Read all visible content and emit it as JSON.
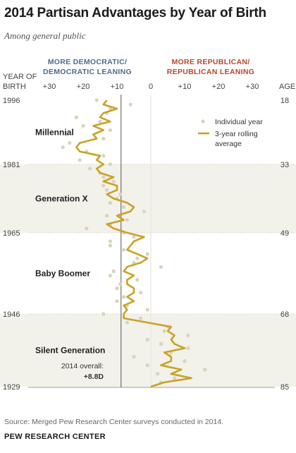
{
  "header": {
    "title": "2014 Partisan Advantages by Year of Birth",
    "subtitle": "Among general public"
  },
  "footer": {
    "source": "Source: Merged Pew Research Center surveys conducted in 2014.",
    "org": "PEW RESEARCH CENTER"
  },
  "colors": {
    "line": "#c9a227",
    "dots": "#d9d3bd",
    "band": "#f2f1ea",
    "dem": "#4e6b8a",
    "rep": "#b5472b"
  },
  "chart_data": {
    "type": "line",
    "x_header_left": [
      "MORE DEMOCRATIC/",
      "DEMOCRATIC LEANING"
    ],
    "x_header_right": [
      "MORE REPUBLICAN/",
      "REPUBLICAN LEANING"
    ],
    "y_axis_left_label": [
      "YEAR OF",
      "BIRTH"
    ],
    "y_axis_right_label": "AGE",
    "xlim": [
      -35,
      35
    ],
    "ylim": [
      1996,
      1929
    ],
    "x_ticks": [
      {
        "value": -30,
        "label": "+30"
      },
      {
        "value": -20,
        "label": "+20"
      },
      {
        "value": -10,
        "label": "+10"
      },
      {
        "value": 0,
        "label": "0"
      },
      {
        "value": 10,
        "label": "+10"
      },
      {
        "value": 20,
        "label": "+20"
      },
      {
        "value": 30,
        "label": "+30"
      }
    ],
    "y_ticks_left": [
      "1996",
      "1981",
      "1965",
      "1946",
      "1929"
    ],
    "y_ticks_right": [
      "18",
      "33",
      "49",
      "68",
      "85"
    ],
    "y_tick_years": [
      1996,
      1981,
      1965,
      1946,
      1929
    ],
    "generations": [
      {
        "name": "Millennial",
        "from": 1996,
        "to": 1981,
        "shaded": false
      },
      {
        "name": "Generation X",
        "from": 1981,
        "to": 1965,
        "shaded": true
      },
      {
        "name": "Baby Boomer",
        "from": 1965,
        "to": 1946,
        "shaded": false
      },
      {
        "name": "Silent Generation",
        "from": 1946,
        "to": 1929,
        "shaded": true
      }
    ],
    "overall": {
      "value": -8.8,
      "label_line1": "2014 overall:",
      "label_line2": "+8.8D"
    },
    "legend": {
      "individual": "Individual year",
      "rolling": [
        "3-year rolling",
        "average"
      ],
      "placement": "top-right"
    },
    "series": [
      {
        "name": "3-year rolling average",
        "points": [
          [
            -13,
            1996
          ],
          [
            -14,
            1995
          ],
          [
            -10,
            1994
          ],
          [
            -14,
            1993
          ],
          [
            -15,
            1992
          ],
          [
            -12,
            1991
          ],
          [
            -17,
            1990
          ],
          [
            -14,
            1989
          ],
          [
            -17,
            1988
          ],
          [
            -16,
            1987
          ],
          [
            -21,
            1986
          ],
          [
            -22,
            1985
          ],
          [
            -21,
            1984
          ],
          [
            -15,
            1983
          ],
          [
            -16,
            1982
          ],
          [
            -14,
            1981
          ],
          [
            -16,
            1980
          ],
          [
            -15,
            1979
          ],
          [
            -11,
            1978
          ],
          [
            -14,
            1977
          ],
          [
            -10,
            1976
          ],
          [
            -10,
            1975
          ],
          [
            -13,
            1974
          ],
          [
            -11,
            1973
          ],
          [
            -7,
            1972
          ],
          [
            -5,
            1971
          ],
          [
            -6,
            1970
          ],
          [
            -10,
            1969
          ],
          [
            -8,
            1968
          ],
          [
            -13,
            1967
          ],
          [
            -11,
            1966
          ],
          [
            -7,
            1965
          ],
          [
            -2,
            1964
          ],
          [
            -5,
            1963
          ],
          [
            -6,
            1962
          ],
          [
            -7,
            1961
          ],
          [
            -4,
            1960
          ],
          [
            -1,
            1959
          ],
          [
            -3,
            1958
          ],
          [
            -7,
            1957
          ],
          [
            -8,
            1956
          ],
          [
            -5,
            1955
          ],
          [
            -7,
            1954
          ],
          [
            -7,
            1953
          ],
          [
            -5,
            1952
          ],
          [
            -5,
            1951
          ],
          [
            -7,
            1950
          ],
          [
            -5,
            1949
          ],
          [
            -8,
            1948
          ],
          [
            -7,
            1947
          ],
          [
            -8,
            1946
          ],
          [
            -8,
            1945
          ],
          [
            -1,
            1944
          ],
          [
            6,
            1943
          ],
          [
            5,
            1942
          ],
          [
            7,
            1941
          ],
          [
            6,
            1940
          ],
          [
            7,
            1939
          ],
          [
            10,
            1938
          ],
          [
            4,
            1937
          ],
          [
            6,
            1936
          ],
          [
            6,
            1935
          ],
          [
            3,
            1934
          ],
          [
            9,
            1933
          ],
          [
            6,
            1932
          ],
          [
            12,
            1931
          ],
          [
            4,
            1930
          ],
          [
            0,
            1929
          ]
        ]
      },
      {
        "name": "Individual year",
        "points": [
          [
            -16,
            1996
          ],
          [
            -6,
            1995
          ],
          [
            -12,
            1994
          ],
          [
            -13,
            1993
          ],
          [
            -22,
            1992
          ],
          [
            -15,
            1991
          ],
          [
            -20,
            1990
          ],
          [
            -12,
            1989
          ],
          [
            -25,
            1988
          ],
          [
            -14,
            1987
          ],
          [
            -24,
            1986
          ],
          [
            -26,
            1985
          ],
          [
            -19,
            1984
          ],
          [
            -14,
            1983
          ],
          [
            -21,
            1982
          ],
          [
            -12,
            1981
          ],
          [
            -18,
            1980
          ],
          [
            -15,
            1979
          ],
          [
            -14,
            1978
          ],
          [
            -11,
            1977
          ],
          [
            -14,
            1976
          ],
          [
            -13,
            1975
          ],
          [
            -9,
            1974
          ],
          [
            -10,
            1973
          ],
          [
            -12,
            1972
          ],
          [
            -8,
            1971
          ],
          [
            -2,
            1970
          ],
          [
            -13,
            1969
          ],
          [
            -7,
            1968
          ],
          [
            -12,
            1967
          ],
          [
            -19,
            1966
          ],
          [
            -8,
            1965
          ],
          [
            -5,
            1964
          ],
          [
            -12,
            1963
          ],
          [
            -12,
            1962
          ],
          [
            -8,
            1961
          ],
          [
            -1,
            1960
          ],
          [
            -4,
            1959
          ],
          [
            -5,
            1958
          ],
          [
            3,
            1957
          ],
          [
            -11,
            1956
          ],
          [
            -12,
            1955
          ],
          [
            -4,
            1954
          ],
          [
            -9,
            1953
          ],
          [
            -10,
            1952
          ],
          [
            -3,
            1951
          ],
          [
            -8,
            1950
          ],
          [
            -10,
            1949
          ],
          [
            -7,
            1948
          ],
          [
            -1,
            1947
          ],
          [
            -14,
            1946
          ],
          [
            -3,
            1945
          ],
          [
            -7,
            1944
          ],
          [
            5,
            1943
          ],
          [
            4,
            1942
          ],
          [
            11,
            1941
          ],
          [
            -1,
            1940
          ],
          [
            3,
            1939
          ],
          [
            11,
            1938
          ],
          [
            6,
            1937
          ],
          [
            -5,
            1936
          ],
          [
            10,
            1935
          ],
          [
            -1,
            1934
          ],
          [
            16,
            1933
          ],
          [
            2,
            1932
          ],
          [
            7,
            1931
          ],
          [
            3,
            1930
          ],
          [
            1,
            1929
          ]
        ]
      }
    ]
  }
}
